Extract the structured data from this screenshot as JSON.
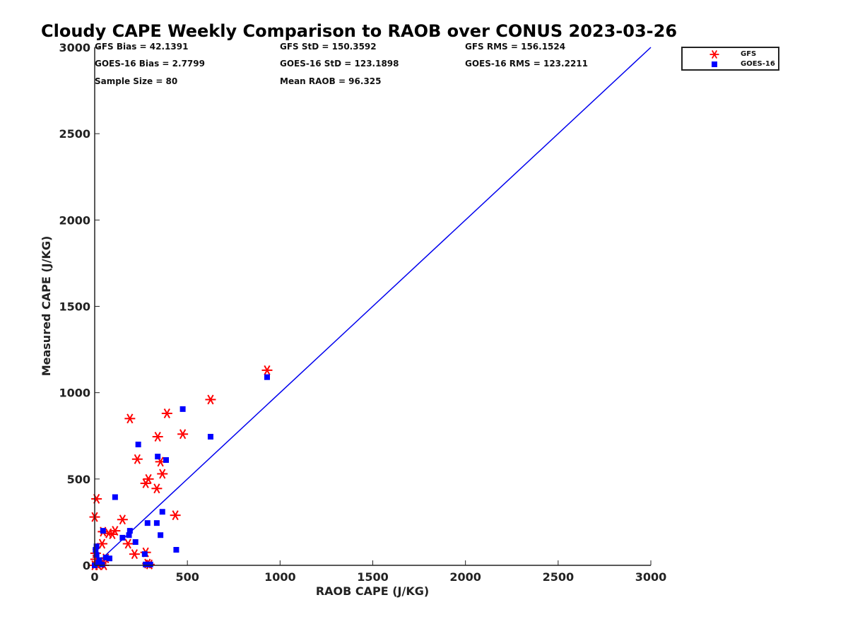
{
  "title": "Cloudy CAPE Weekly Comparison to RAOB over CONUS 2023-03-26",
  "stats": {
    "gfs_bias": "GFS Bias = 42.1391",
    "gfs_std": "GFS StD = 150.3592",
    "gfs_rms": "GFS RMS = 156.1524",
    "goes_bias": "GOES-16 Bias = 2.7799",
    "goes_std": "GOES-16 StD = 123.1898",
    "goes_rms": "GOES-16 RMS = 123.2211",
    "sample_size": "Sample Size = 80",
    "mean_raob": "Mean RAOB = 96.325"
  },
  "legend": {
    "gfs": "GFS",
    "goes": "GOES-16"
  },
  "chart_data": {
    "type": "scatter",
    "title": "Cloudy CAPE Weekly Comparison to RAOB over CONUS 2023-03-26",
    "xlabel": "RAOB CAPE (J/KG)",
    "ylabel": "Measured CAPE (J/KG)",
    "xlim": [
      0,
      3000
    ],
    "ylim": [
      0,
      3000
    ],
    "xticks": [
      "0",
      "500",
      "1000",
      "1500",
      "2000",
      "2500",
      "3000"
    ],
    "yticks": [
      "0",
      "500",
      "1000",
      "1500",
      "2000",
      "2500",
      "3000"
    ],
    "grid": false,
    "legend_position": "outside top-right",
    "reference_line": {
      "x": [
        0,
        3000
      ],
      "y": [
        0,
        3000
      ],
      "color": "#0000ee"
    },
    "series": [
      {
        "name": "GFS",
        "marker": "asterisk",
        "color": "#ff0000",
        "points": [
          [
            930,
            1130
          ],
          [
            625,
            960
          ],
          [
            190,
            850
          ],
          [
            390,
            880
          ],
          [
            340,
            745
          ],
          [
            475,
            760
          ],
          [
            230,
            615
          ],
          [
            355,
            600
          ],
          [
            365,
            530
          ],
          [
            290,
            500
          ],
          [
            275,
            475
          ],
          [
            335,
            445
          ],
          [
            435,
            290
          ],
          [
            10,
            385
          ],
          [
            0,
            280
          ],
          [
            150,
            265
          ],
          [
            45,
            195
          ],
          [
            110,
            200
          ],
          [
            95,
            180
          ],
          [
            75,
            185
          ],
          [
            180,
            125
          ],
          [
            40,
            125
          ],
          [
            215,
            65
          ],
          [
            275,
            75
          ],
          [
            60,
            40
          ],
          [
            5,
            70
          ],
          [
            295,
            5
          ],
          [
            285,
            10
          ],
          [
            35,
            10
          ],
          [
            15,
            10
          ],
          [
            0,
            0
          ],
          [
            20,
            0
          ],
          [
            50,
            0
          ],
          [
            5,
            35
          ],
          [
            25,
            20
          ]
        ]
      },
      {
        "name": "GOES-16",
        "marker": "square",
        "color": "#0000ff",
        "points": [
          [
            930,
            1090
          ],
          [
            475,
            905
          ],
          [
            625,
            745
          ],
          [
            235,
            700
          ],
          [
            340,
            630
          ],
          [
            385,
            610
          ],
          [
            110,
            395
          ],
          [
            365,
            310
          ],
          [
            285,
            245
          ],
          [
            335,
            245
          ],
          [
            45,
            200
          ],
          [
            190,
            200
          ],
          [
            185,
            175
          ],
          [
            355,
            175
          ],
          [
            150,
            160
          ],
          [
            220,
            135
          ],
          [
            440,
            90
          ],
          [
            10,
            110
          ],
          [
            5,
            90
          ],
          [
            80,
            40
          ],
          [
            270,
            65
          ],
          [
            60,
            45
          ],
          [
            275,
            5
          ],
          [
            300,
            5
          ],
          [
            0,
            0
          ],
          [
            20,
            15
          ],
          [
            40,
            5
          ],
          [
            10,
            60
          ],
          [
            25,
            30
          ]
        ]
      }
    ]
  }
}
